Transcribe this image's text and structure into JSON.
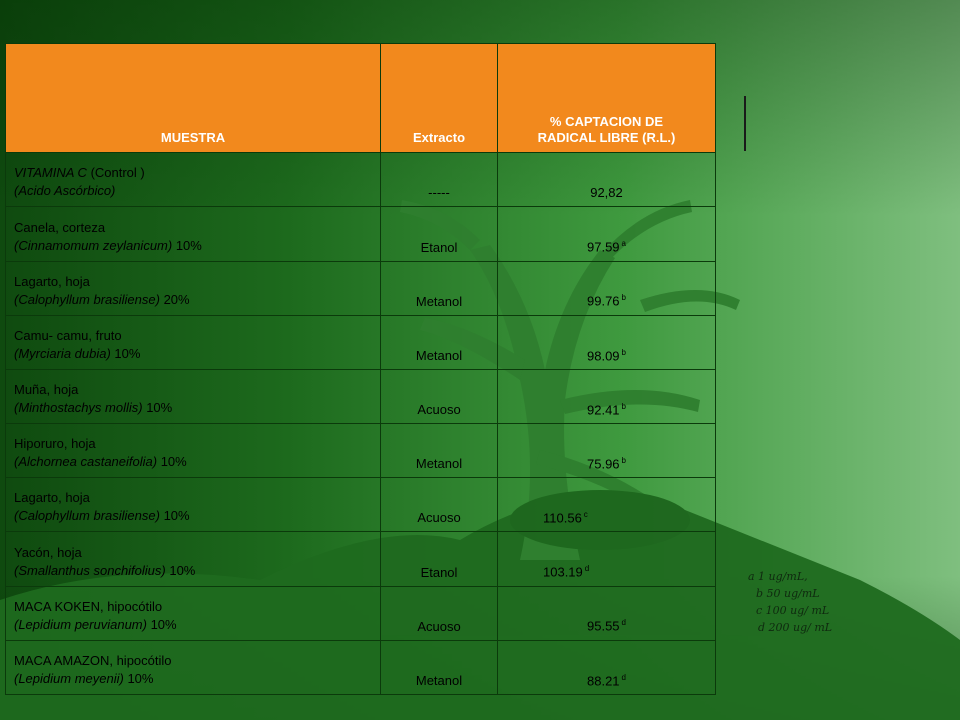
{
  "table": {
    "headers": {
      "sample": "MUESTRA",
      "extract": "Extracto",
      "value_line1": "% CAPTACION DE",
      "value_line2": "RADICAL LIBRE (R.L.)"
    },
    "rows": [
      {
        "line1": "VITAMINA C (Control )",
        "line2_sci": "(Acido Ascórbico)",
        "line2_rest": "",
        "extract": "-----",
        "value": "92,82",
        "sup": ""
      },
      {
        "line1": "Canela, corteza",
        "line2_sci": "(Cinnamomum zeylanicum)",
        "line2_rest": " 10%",
        "extract": "Etanol",
        "value": "97.59",
        "sup": "a"
      },
      {
        "line1": "Lagarto, hoja",
        "line2_sci": "(Calophyllum brasiliense)",
        "line2_rest": " 20%",
        "extract": "Metanol",
        "value": "99.76",
        "sup": "b"
      },
      {
        "line1": "Camu- camu, fruto",
        "line2_sci": "(Myrciaria dubia)",
        "line2_rest": " 10%",
        "extract": "Metanol",
        "value": "98.09",
        "sup": "b"
      },
      {
        "line1": "Muña, hoja",
        "line2_sci": "(Minthostachys mollis)",
        "line2_rest": " 10%",
        "extract": "Acuoso",
        "value": "92.41",
        "sup": "b"
      },
      {
        "line1": "Hiporuro, hoja",
        "line2_sci": "(Alchornea castaneifolia)",
        "line2_rest": " 10%",
        "extract": "Metanol",
        "value": "75.96",
        "sup": "b"
      },
      {
        "line1": "Lagarto, hoja",
        "line2_sci": "(Calophyllum brasiliense)",
        "line2_rest": " 10%",
        "extract": "Acuoso",
        "value": "110.56",
        "sup": "c"
      },
      {
        "line1": "Yacón, hoja",
        "line2_sci": "(Smallanthus sonchifolius)",
        "line2_rest": " 10%",
        "extract": "Etanol",
        "value": "103.19",
        "sup": "d"
      },
      {
        "line1": "MACA KOKEN, hipocótilo",
        "line2_sci": "(Lepidium peruvianum)",
        "line2_rest": " 10%",
        "extract": "Acuoso",
        "value": "95.55",
        "sup": "d"
      },
      {
        "line1": "MACA AMAZON, hipocótilo",
        "line2_sci": "(Lepidium meyenii)",
        "line2_rest": " 10%",
        "extract": "Metanol",
        "value": "88.21",
        "sup": "d"
      }
    ]
  },
  "legend": [
    "a 1 ug/mL,",
    "b 50 ug/mL",
    "c 100 ug/ mL",
    "d 200 ug/ mL"
  ],
  "colors": {
    "header_bg": "#f2891d",
    "background_dark": "#0f4a0f",
    "background_light": "#7fbf7f",
    "tree": "#2a7a2a"
  }
}
